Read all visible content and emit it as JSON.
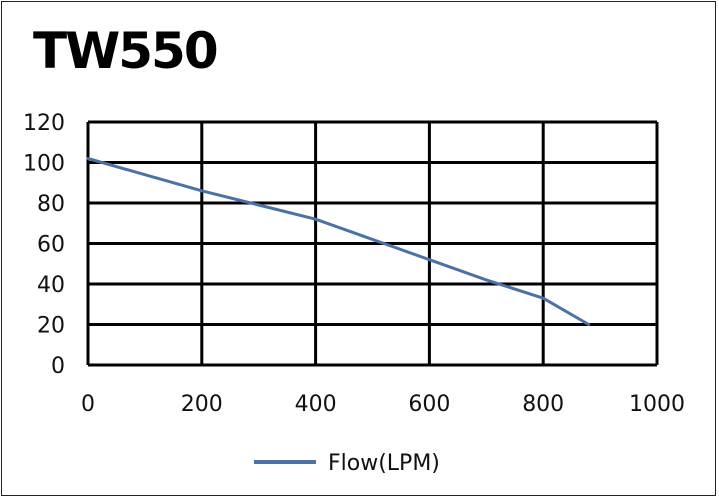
{
  "chart_data": {
    "type": "line",
    "title": "TW550",
    "xlabel": "",
    "ylabel": "",
    "xlim": [
      0,
      1000
    ],
    "ylim": [
      0,
      120
    ],
    "x_ticks": [
      0,
      200,
      400,
      600,
      800,
      1000
    ],
    "y_ticks": [
      0,
      20,
      40,
      60,
      80,
      100,
      120
    ],
    "x_tick_labels": [
      "0",
      "200",
      "400",
      "600",
      "800",
      "1000"
    ],
    "y_tick_labels": [
      "0",
      "20",
      "40",
      "60",
      "80",
      "100",
      "120"
    ],
    "grid": true,
    "legend_position": "bottom-center",
    "series": [
      {
        "name": "Flow(LPM)",
        "color": "#4a72a5",
        "x": [
          0,
          100,
          200,
          300,
          400,
          500,
          600,
          700,
          800,
          880
        ],
        "y": [
          102,
          94,
          86,
          79,
          72,
          62,
          52,
          42,
          33,
          20
        ]
      }
    ]
  },
  "colors": {
    "grid": "#000000",
    "frame": "#222222",
    "text": "#111111"
  }
}
